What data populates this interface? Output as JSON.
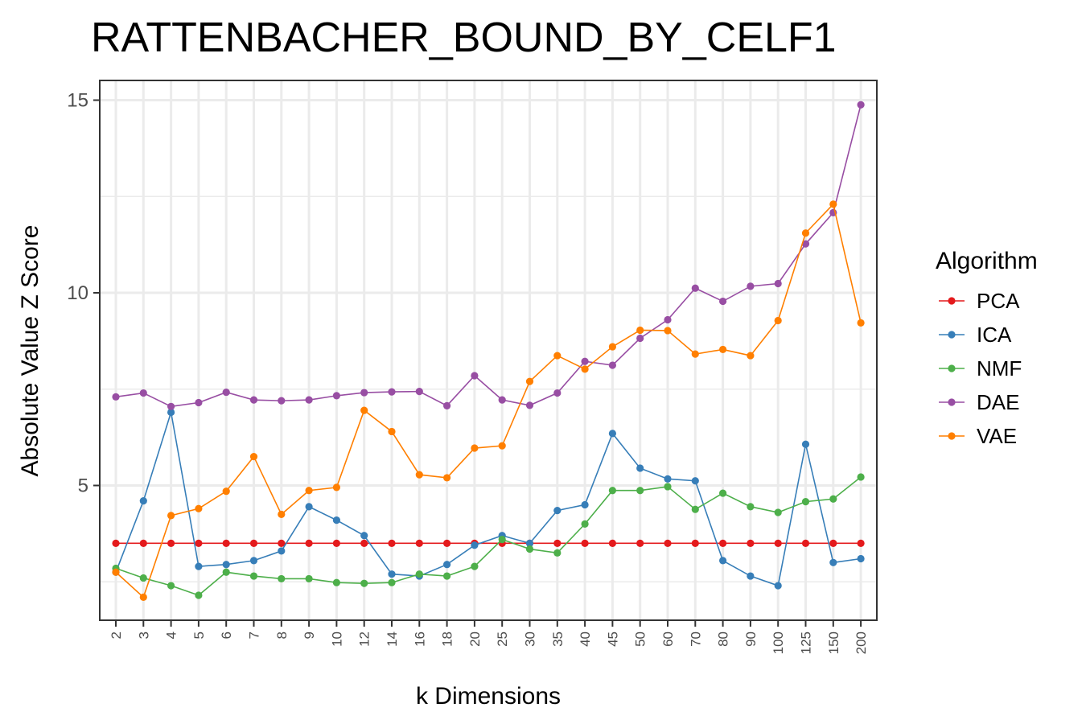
{
  "chart_data": {
    "type": "line",
    "title": "RATTENBACHER_BOUND_BY_CELF1",
    "xlabel": "k Dimensions",
    "ylabel": "Absolute Value Z Score",
    "categories": [
      "2",
      "3",
      "4",
      "5",
      "6",
      "7",
      "8",
      "9",
      "10",
      "12",
      "14",
      "16",
      "18",
      "20",
      "25",
      "30",
      "35",
      "40",
      "45",
      "50",
      "60",
      "70",
      "80",
      "90",
      "100",
      "125",
      "150",
      "200"
    ],
    "yticks": [
      5,
      10,
      15
    ],
    "ylim": [
      1.4,
      15.5
    ],
    "grid": true,
    "legend": {
      "title": "Algorithm",
      "position": "right"
    },
    "series": [
      {
        "name": "PCA",
        "color": "#e41a1c",
        "values": [
          3.5,
          3.5,
          3.5,
          3.5,
          3.5,
          3.5,
          3.5,
          3.5,
          3.5,
          3.5,
          3.5,
          3.5,
          3.5,
          3.5,
          3.5,
          3.5,
          3.5,
          3.5,
          3.5,
          3.5,
          3.5,
          3.5,
          3.5,
          3.5,
          3.5,
          3.5,
          3.5,
          3.5
        ]
      },
      {
        "name": "ICA",
        "color": "#377eb8",
        "values": [
          2.75,
          4.6,
          6.9,
          2.9,
          2.95,
          3.05,
          3.3,
          4.45,
          4.1,
          3.7,
          2.7,
          2.65,
          2.95,
          3.45,
          3.7,
          3.5,
          4.35,
          4.5,
          6.35,
          5.45,
          5.17,
          5.12,
          3.05,
          2.65,
          2.4,
          6.07,
          3.0,
          3.1
        ]
      },
      {
        "name": "NMF",
        "color": "#4daf4a",
        "values": [
          2.85,
          2.6,
          2.4,
          2.15,
          2.75,
          2.65,
          2.58,
          2.58,
          2.48,
          2.46,
          2.48,
          2.7,
          2.65,
          2.9,
          3.6,
          3.35,
          3.25,
          4.0,
          4.87,
          4.87,
          4.97,
          4.38,
          4.8,
          4.45,
          4.3,
          4.58,
          4.65,
          5.22
        ]
      },
      {
        "name": "DAE",
        "color": "#984ea3",
        "values": [
          7.3,
          7.4,
          7.05,
          7.15,
          7.42,
          7.22,
          7.2,
          7.22,
          7.33,
          7.41,
          7.43,
          7.44,
          7.07,
          7.85,
          7.22,
          7.08,
          7.4,
          8.22,
          8.12,
          8.82,
          9.3,
          10.12,
          9.78,
          10.17,
          10.24,
          11.27,
          12.08,
          14.88
        ]
      },
      {
        "name": "VAE",
        "color": "#ff7f00",
        "values": [
          2.75,
          2.1,
          4.22,
          4.4,
          4.85,
          5.75,
          4.25,
          4.87,
          4.95,
          6.95,
          6.4,
          5.28,
          5.2,
          5.97,
          6.03,
          7.7,
          8.37,
          8.02,
          8.6,
          9.03,
          9.02,
          8.41,
          8.53,
          8.37,
          9.28,
          11.55,
          12.3,
          9.22
        ]
      }
    ]
  }
}
